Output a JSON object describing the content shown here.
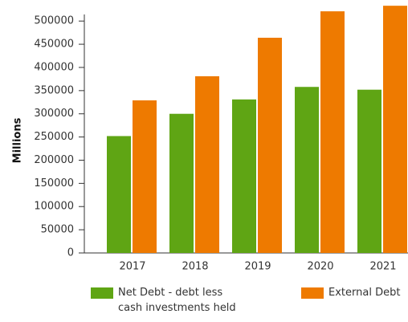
{
  "chart_data": {
    "type": "bar",
    "y_label": "Millions",
    "categories": [
      "2017",
      "2018",
      "2019",
      "2020",
      "2021"
    ],
    "series": [
      {
        "name": "Net Debt - debt less cash investments held",
        "color": "#5fa514",
        "values": [
          252000,
          300000,
          331000,
          358000,
          352000
        ]
      },
      {
        "name": "External Debt",
        "color": "#ee7a00",
        "values": [
          329000,
          381000,
          464000,
          521000,
          533000
        ]
      }
    ],
    "ylim": [
      0,
      535000
    ],
    "yticks": [
      0,
      50000,
      100000,
      150000,
      200000,
      250000,
      300000,
      350000,
      400000,
      450000,
      500000
    ],
    "grid": false
  }
}
